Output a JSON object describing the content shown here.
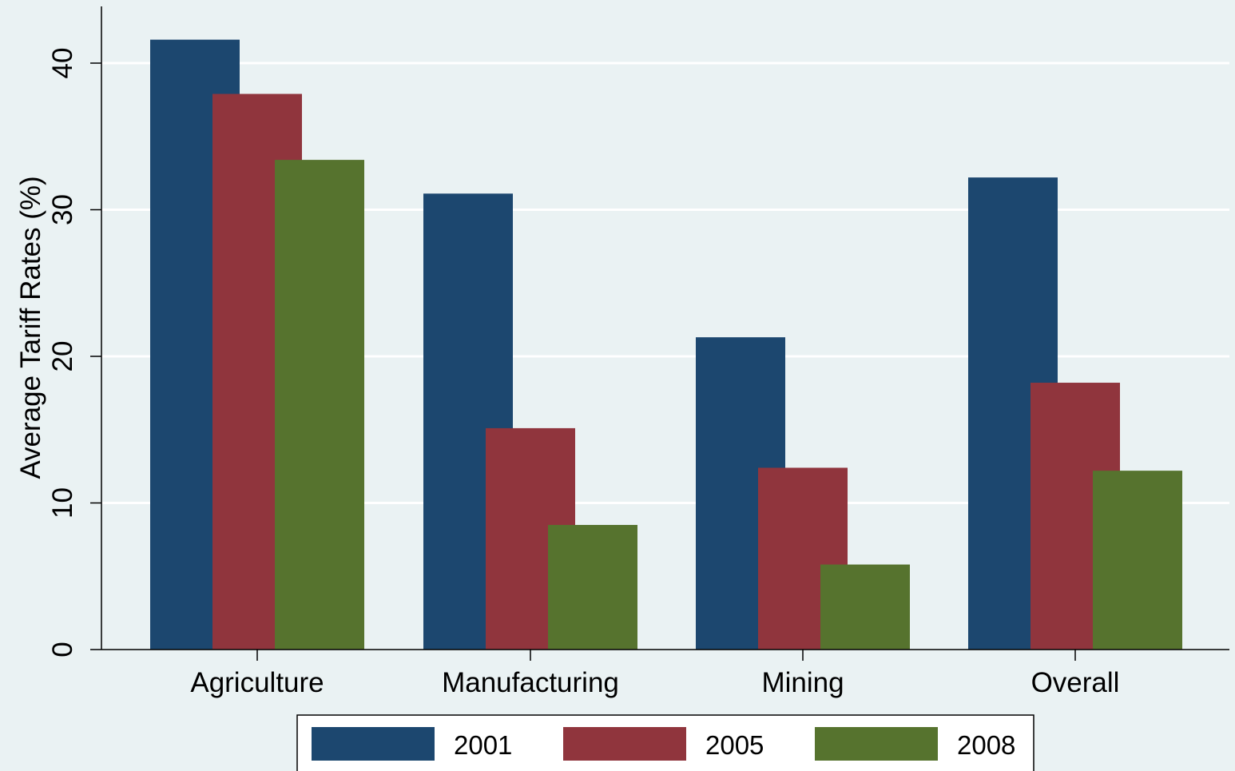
{
  "chart_data": {
    "type": "bar",
    "title": "",
    "xlabel": "",
    "ylabel": "Average Tariff Rates (%)",
    "ylim": [
      0,
      44
    ],
    "yticks": [
      0,
      10,
      20,
      30,
      40
    ],
    "grid": true,
    "legend_position": "bottom",
    "categories": [
      "Agriculture",
      "Manufacturing",
      "Mining",
      "Overall"
    ],
    "series": [
      {
        "name": "2001",
        "color": "#1c476f",
        "values": [
          41.6,
          31.1,
          21.3,
          32.2
        ]
      },
      {
        "name": "2005",
        "color": "#90353d",
        "values": [
          37.9,
          15.1,
          12.4,
          18.2
        ]
      },
      {
        "name": "2008",
        "color": "#56732e",
        "values": [
          33.4,
          8.5,
          5.8,
          12.2
        ]
      }
    ]
  }
}
